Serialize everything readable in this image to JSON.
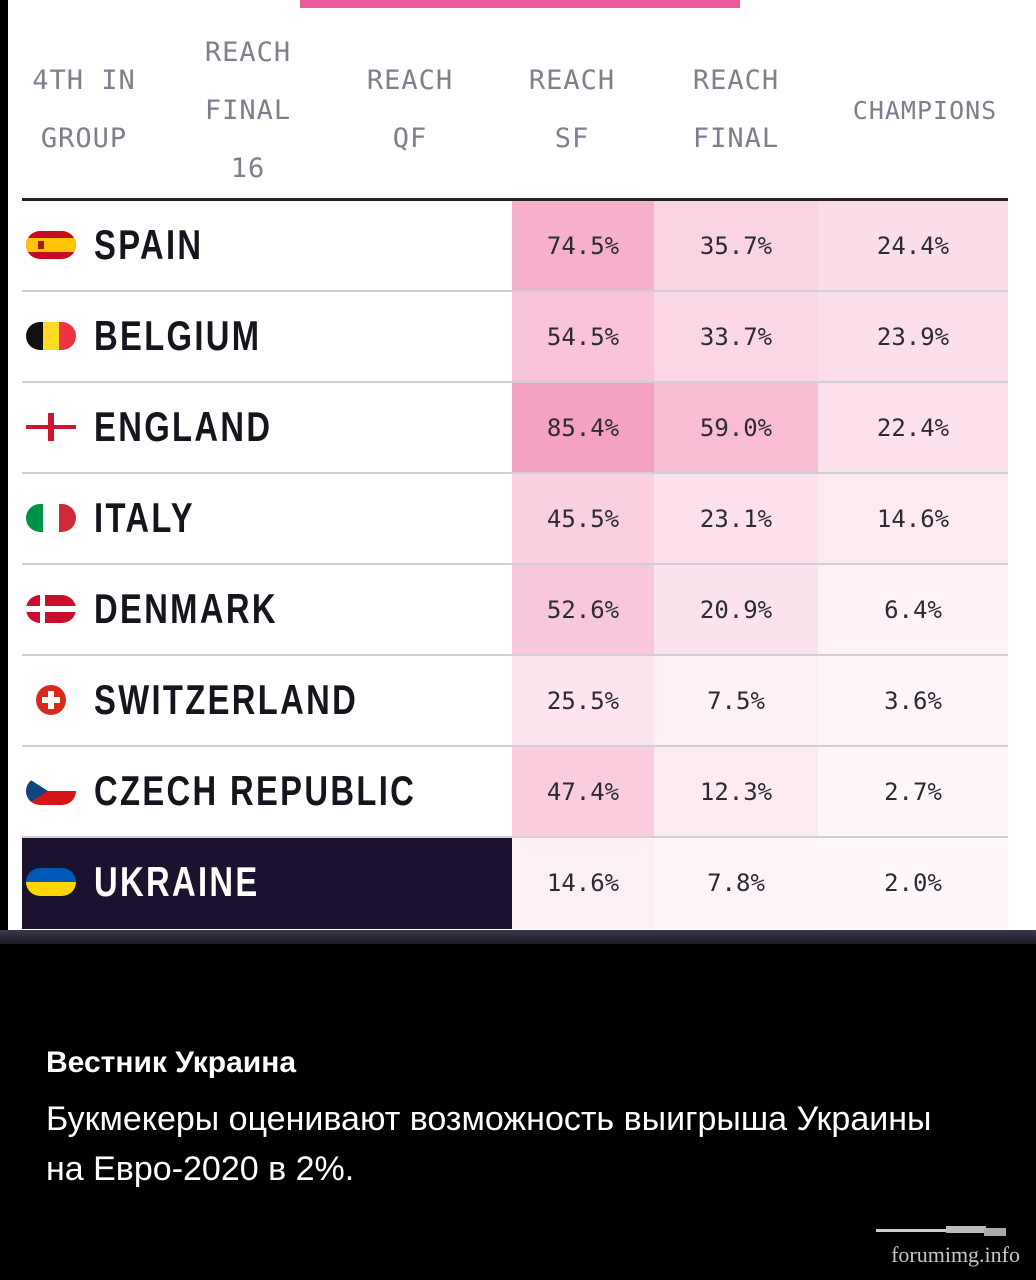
{
  "columns": {
    "fourth_in_group": [
      "4TH IN",
      "GROUP"
    ],
    "reach_final_16": [
      "REACH",
      "FINAL",
      "16"
    ],
    "reach_qf": [
      "REACH",
      "QF"
    ],
    "reach_sf": [
      "REACH",
      "SF"
    ],
    "reach_final": [
      "REACH",
      "FINAL"
    ],
    "champions": [
      "CHAMPIONS"
    ]
  },
  "rows": [
    {
      "team": "SPAIN",
      "flag": "spain-flag-icon",
      "sf": "74.5%",
      "final": "35.7%",
      "champions": "24.4%",
      "sf_shade": "#f7b0cc",
      "final_shade": "#fbd4e4",
      "champ_shade": "#fbdde9"
    },
    {
      "team": "BELGIUM",
      "flag": "belgium-flag-icon",
      "sf": "54.5%",
      "final": "33.7%",
      "champions": "23.9%",
      "sf_shade": "#f9c4d9",
      "final_shade": "#fbd6e5",
      "champ_shade": "#fbdeea"
    },
    {
      "team": "ENGLAND",
      "flag": "england-flag-icon",
      "sf": "85.4%",
      "final": "59.0%",
      "champions": "22.4%",
      "sf_shade": "#f5a2c2",
      "final_shade": "#f8bcd3",
      "champ_shade": "#fce1ec"
    },
    {
      "team": "ITALY",
      "flag": "italy-flag-icon",
      "sf": "45.5%",
      "final": "23.1%",
      "champions": "14.6%",
      "sf_shade": "#facfe0",
      "final_shade": "#fce0eb",
      "champ_shade": "#fdeaf1"
    },
    {
      "team": "DENMARK",
      "flag": "denmark-flag-icon",
      "sf": "52.6%",
      "final": "20.9%",
      "champions": "6.4%",
      "sf_shade": "#f9c7db",
      "final_shade": "#fce2ec",
      "champ_shade": "#fef2f6"
    },
    {
      "team": "SWITZERLAND",
      "flag": "switzerland-flag-icon",
      "sf": "25.5%",
      "final": "7.5%",
      "champions": "3.6%",
      "sf_shade": "#fde4ee",
      "final_shade": "#fef1f6",
      "champ_shade": "#fff5f8"
    },
    {
      "team": "CZECH REPUBLIC",
      "flag": "czech-flag-icon",
      "sf": "47.4%",
      "final": "12.3%",
      "champions": "2.7%",
      "sf_shade": "#faccde",
      "final_shade": "#fdeaf1",
      "champ_shade": "#fff6f9"
    },
    {
      "team": "UKRAINE",
      "flag": "ukraine-flag-icon",
      "sf": "14.6%",
      "final": "7.8%",
      "champions": "2.0%",
      "sf_shade": "#fdf0f5",
      "final_shade": "#fef3f7",
      "champ_shade": "#fff7fa"
    }
  ],
  "footer": {
    "source": "Вестник Украина",
    "message": "Букмекеры оценивают возможность выигрыша Украины на Евро-2020 в 2%.",
    "watermark": "forumimg.info"
  },
  "colors": {
    "accent_bar": "#ea5a9a",
    "highlight_row": "#1c1230"
  }
}
